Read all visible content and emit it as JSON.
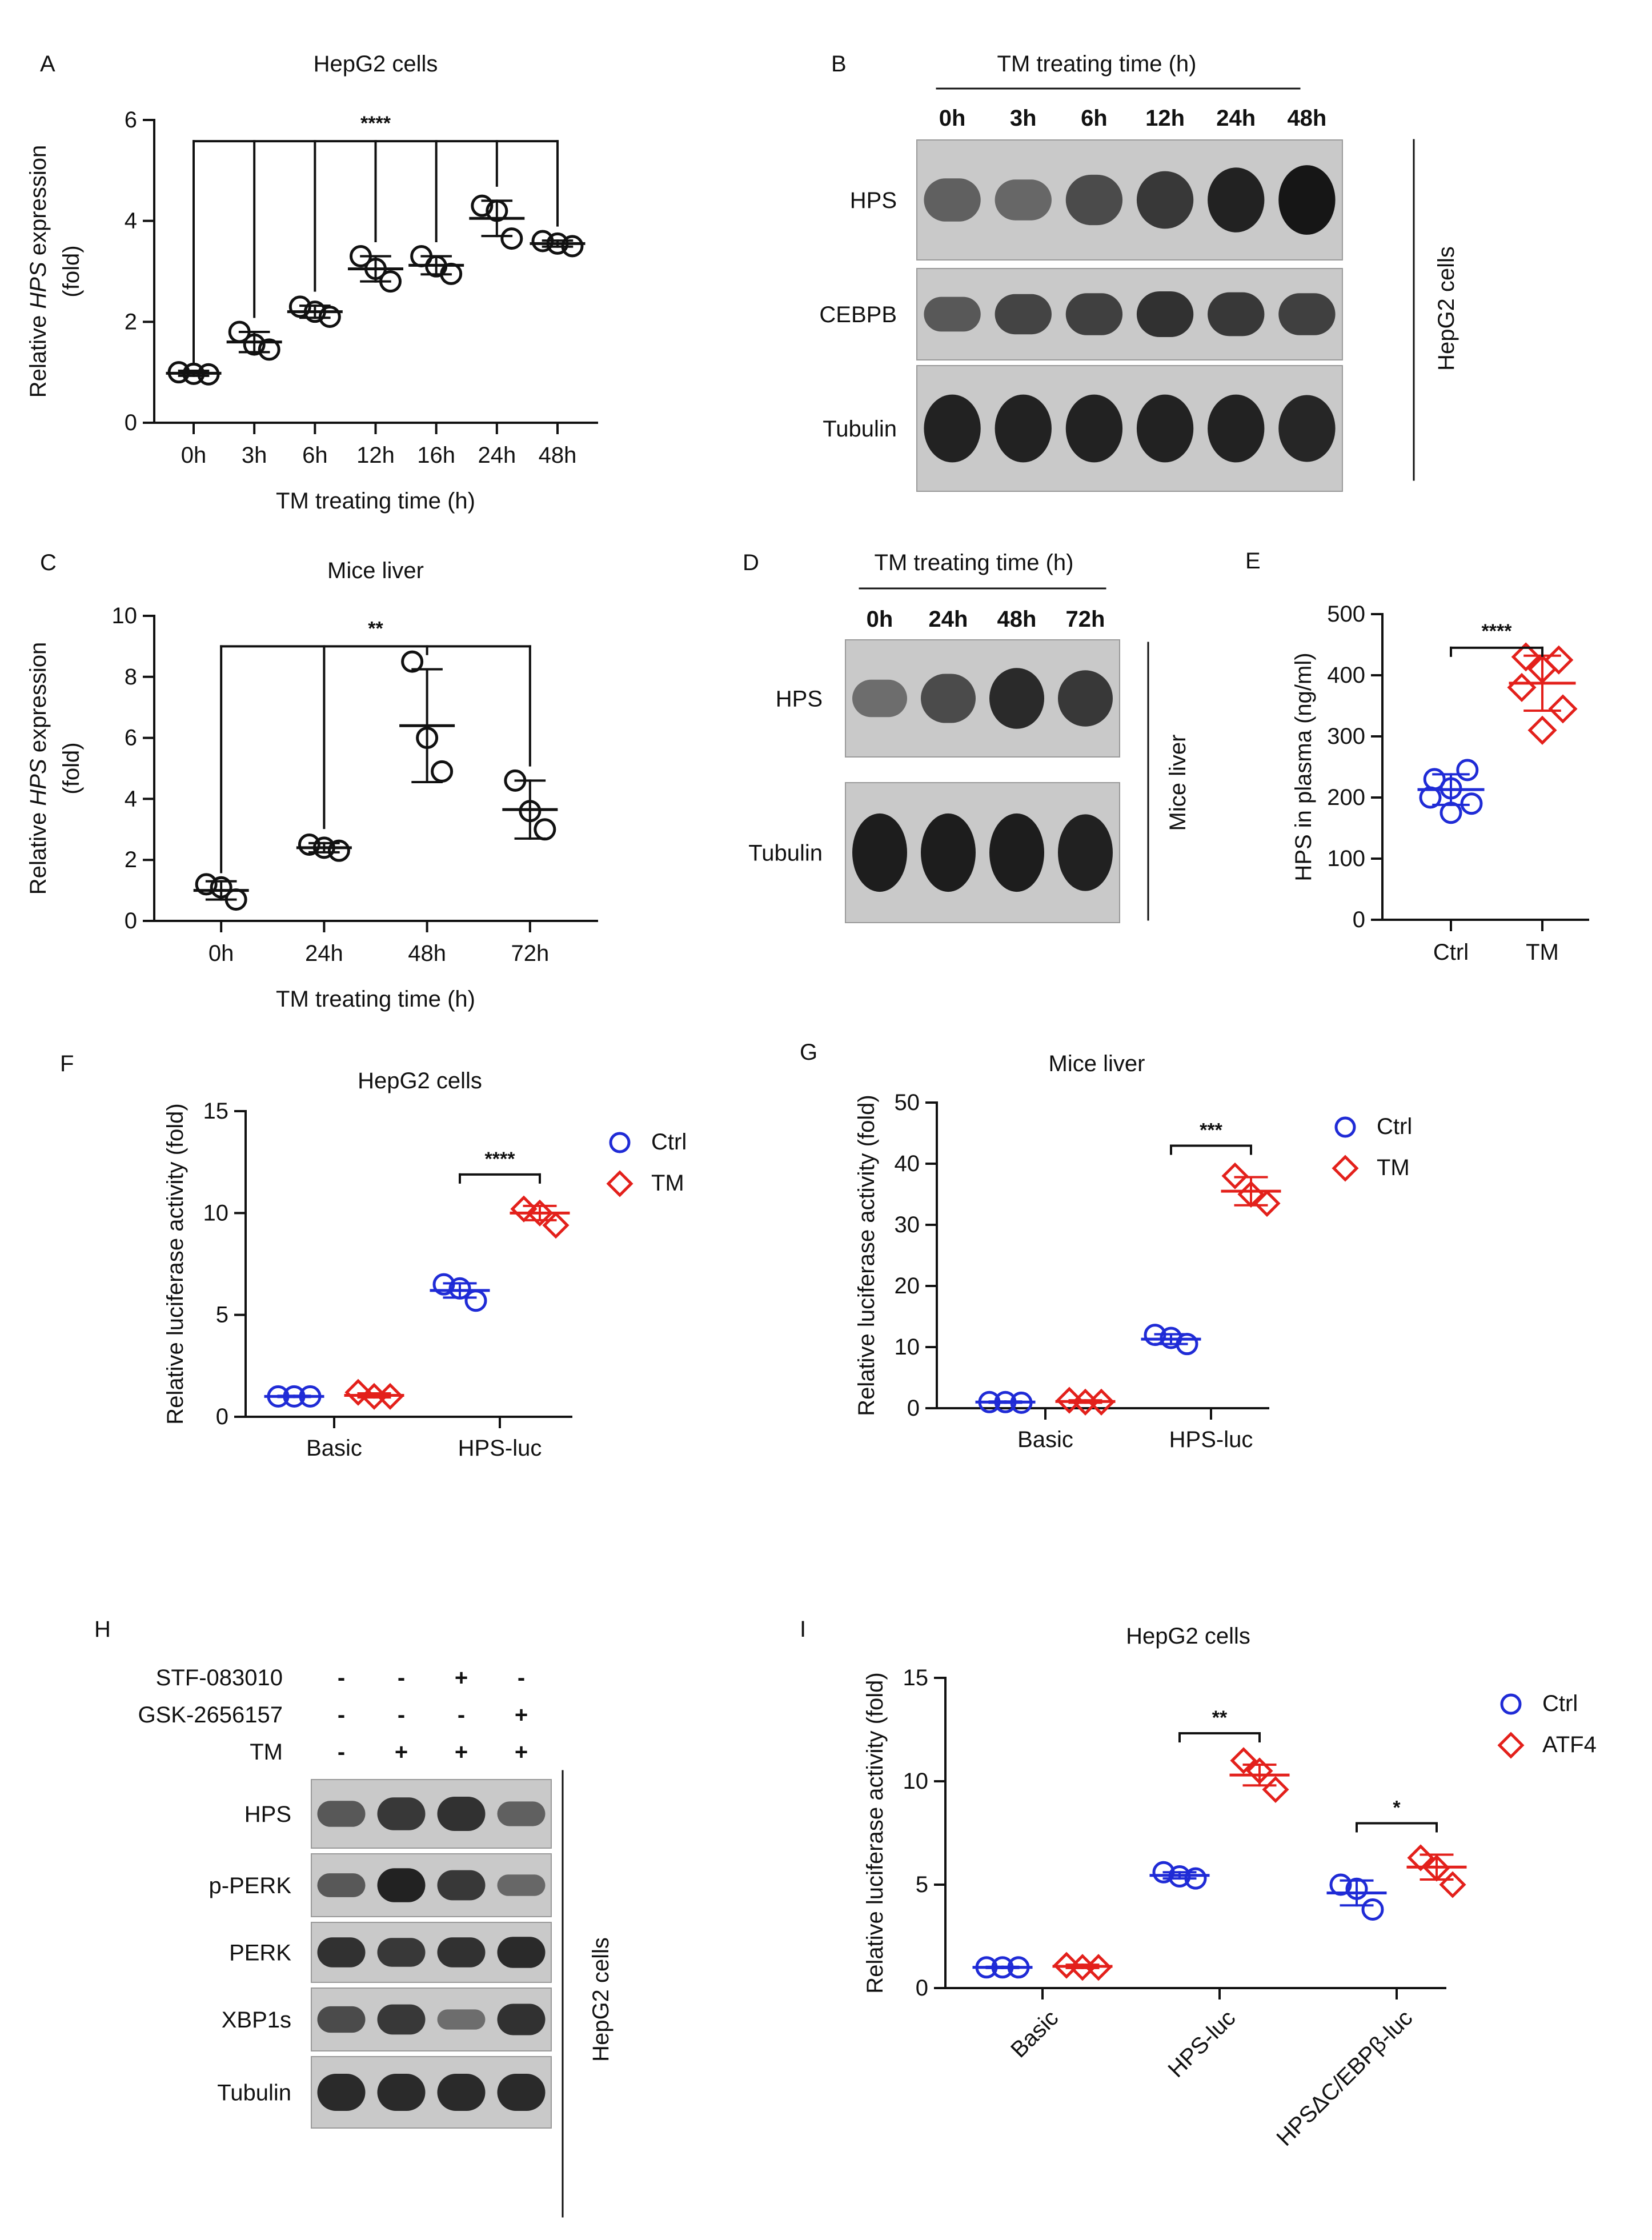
{
  "colors": {
    "ctrl": "#1f2bd6",
    "treated": "#e3201b",
    "axis": "#111111",
    "blot_bg": "#c9c9c9",
    "band": "#161616"
  },
  "chart_data": [
    {
      "id": "A",
      "type": "scatter",
      "panel_label": "A",
      "title": "HepG2 cells",
      "ylabel_pre": "Relative ",
      "ylabel_italic": "HPS",
      "ylabel_post": " expression",
      "ylabel_line2": "(fold)",
      "xlabel": "TM treating time (h)",
      "ylim": [
        0,
        6
      ],
      "yticks": [
        0,
        2,
        4,
        6
      ],
      "categories": [
        "0h",
        "3h",
        "6h",
        "12h",
        "16h",
        "24h",
        "48h"
      ],
      "points": [
        [
          1.0,
          0.97,
          0.96
        ],
        [
          1.8,
          1.55,
          1.45
        ],
        [
          2.3,
          2.2,
          2.1
        ],
        [
          3.3,
          3.05,
          2.8
        ],
        [
          3.3,
          3.1,
          2.95
        ],
        [
          4.3,
          4.2,
          3.65
        ],
        [
          3.6,
          3.55,
          3.5
        ]
      ],
      "mean": [
        0.98,
        1.6,
        2.2,
        3.05,
        3.12,
        4.05,
        3.55
      ],
      "sd": [
        0.05,
        0.2,
        0.12,
        0.25,
        0.18,
        0.35,
        0.06
      ],
      "significance": "****"
    },
    {
      "id": "C",
      "type": "scatter",
      "panel_label": "C",
      "title": "Mice liver",
      "ylabel_pre": "Relative ",
      "ylabel_italic": "HPS",
      "ylabel_post": " expression",
      "ylabel_line2": "(fold)",
      "xlabel": "TM treating time (h)",
      "ylim": [
        0,
        10
      ],
      "yticks": [
        0,
        2,
        4,
        6,
        8,
        10
      ],
      "categories": [
        "0h",
        "24h",
        "48h",
        "72h"
      ],
      "points": [
        [
          1.2,
          1.1,
          0.7
        ],
        [
          2.5,
          2.4,
          2.3
        ],
        [
          8.5,
          6.0,
          4.9
        ],
        [
          4.6,
          3.6,
          3.0
        ]
      ],
      "mean": [
        1.0,
        2.4,
        6.4,
        3.65
      ],
      "sd": [
        0.3,
        0.15,
        1.85,
        0.95
      ],
      "significance": "**"
    },
    {
      "id": "E",
      "type": "scatter",
      "panel_label": "E",
      "title": "",
      "ylabel": "HPS in plasma (ng/ml)",
      "ylim": [
        0,
        500
      ],
      "yticks": [
        0,
        100,
        200,
        300,
        400,
        500
      ],
      "categories": [
        "Ctrl",
        "TM"
      ],
      "points": [
        [
          230,
          245,
          215,
          200,
          190,
          175
        ],
        [
          430,
          425,
          410,
          380,
          345,
          310
        ]
      ],
      "mean": [
        213,
        387
      ],
      "sd": [
        25,
        45
      ],
      "significance": "****"
    },
    {
      "id": "F",
      "type": "scatter",
      "panel_label": "F",
      "title": "HepG2 cells",
      "ylabel": "Relative luciferase activity (fold)",
      "ylim": [
        0,
        15
      ],
      "yticks": [
        0,
        5,
        10,
        15
      ],
      "categories": [
        "Basic",
        "HPS-luc"
      ],
      "series": [
        {
          "name": "Ctrl",
          "points": [
            [
              1.0,
              1.0,
              1.0
            ],
            [
              6.5,
              6.3,
              5.7
            ]
          ],
          "mean": [
            1.0,
            6.2
          ],
          "sd": [
            0.03,
            0.35
          ]
        },
        {
          "name": "TM",
          "points": [
            [
              1.2,
              1.0,
              1.0
            ],
            [
              10.2,
              10.0,
              9.4
            ]
          ],
          "mean": [
            1.05,
            10.0
          ],
          "sd": [
            0.1,
            0.35
          ]
        }
      ],
      "significance": "****"
    },
    {
      "id": "G",
      "type": "scatter",
      "panel_label": "G",
      "title": "Mice liver",
      "ylabel": "Relative luciferase activity (fold)",
      "ylim": [
        0,
        50
      ],
      "yticks": [
        0,
        10,
        20,
        30,
        40,
        50
      ],
      "categories": [
        "Basic",
        "HPS-luc"
      ],
      "series": [
        {
          "name": "Ctrl",
          "points": [
            [
              1.0,
              1.0,
              0.9
            ],
            [
              12.0,
              11.5,
              10.5
            ]
          ],
          "mean": [
            1.0,
            11.3
          ],
          "sd": [
            0.1,
            0.8
          ]
        },
        {
          "name": "TM",
          "points": [
            [
              1.3,
              1.0,
              1.0
            ],
            [
              38.0,
              35.0,
              33.5
            ]
          ],
          "mean": [
            1.1,
            35.5
          ],
          "sd": [
            0.2,
            2.3
          ]
        }
      ],
      "significance": "***"
    },
    {
      "id": "I",
      "type": "scatter",
      "panel_label": "I",
      "title": "HepG2 cells",
      "ylabel": "Relative luciferase activity (fold)",
      "ylim": [
        0,
        15
      ],
      "yticks": [
        0,
        5,
        10,
        15
      ],
      "categories": [
        "Basic",
        "HPS-luc",
        "HPSΔC/EBPβ-luc"
      ],
      "series": [
        {
          "name": "Ctrl",
          "points": [
            [
              1.0,
              1.0,
              1.0
            ],
            [
              5.6,
              5.4,
              5.3
            ],
            [
              5.0,
              4.8,
              3.8
            ]
          ],
          "mean": [
            1.0,
            5.45,
            4.6
          ],
          "sd": [
            0.03,
            0.15,
            0.6
          ]
        },
        {
          "name": "ATF4",
          "points": [
            [
              1.1,
              1.0,
              1.0
            ],
            [
              11.0,
              10.5,
              9.6
            ],
            [
              6.3,
              5.8,
              5.0
            ]
          ],
          "mean": [
            1.05,
            10.3,
            5.85
          ],
          "sd": [
            0.08,
            0.5,
            0.6
          ]
        }
      ],
      "significance": [
        "**",
        "*"
      ]
    }
  ],
  "blots": [
    {
      "id": "B",
      "panel_label": "B",
      "header": "TM treating time (h)",
      "lanes": [
        "0h",
        "3h",
        "6h",
        "12h",
        "24h",
        "48h"
      ],
      "rows": [
        {
          "label": "HPS",
          "intensity": [
            0.45,
            0.4,
            0.6,
            0.75,
            0.9,
            1.0
          ]
        },
        {
          "label": "CEBPB",
          "intensity": [
            0.5,
            0.65,
            0.7,
            0.8,
            0.75,
            0.7
          ]
        },
        {
          "label": "Tubulin",
          "intensity": [
            0.9,
            0.9,
            0.9,
            0.9,
            0.9,
            0.88
          ]
        }
      ],
      "side_label": "HepG2 cells"
    },
    {
      "id": "D",
      "panel_label": "D",
      "header": "TM treating time (h)",
      "lanes": [
        "0h",
        "24h",
        "48h",
        "72h"
      ],
      "rows": [
        {
          "label": "HPS",
          "intensity": [
            0.35,
            0.6,
            0.85,
            0.75
          ]
        },
        {
          "label": "Tubulin",
          "intensity": [
            0.95,
            0.95,
            0.95,
            0.92
          ]
        }
      ],
      "side_label": "Mice liver"
    },
    {
      "id": "H",
      "panel_label": "H",
      "treatments": [
        {
          "label": "STF-083010",
          "values": [
            "-",
            "-",
            "+",
            "-"
          ]
        },
        {
          "label": "GSK-2656157",
          "values": [
            "-",
            "-",
            "-",
            "+"
          ]
        },
        {
          "label": "TM",
          "values": [
            "-",
            "+",
            "+",
            "+"
          ]
        }
      ],
      "rows": [
        {
          "label": "HPS",
          "intensity": [
            0.5,
            0.75,
            0.8,
            0.45
          ]
        },
        {
          "label": "p-PERK",
          "intensity": [
            0.5,
            0.9,
            0.75,
            0.4
          ]
        },
        {
          "label": "PERK",
          "intensity": [
            0.8,
            0.75,
            0.8,
            0.85
          ]
        },
        {
          "label": "XBP1s",
          "intensity": [
            0.6,
            0.75,
            0.35,
            0.8
          ]
        },
        {
          "label": "Tubulin",
          "intensity": [
            0.85,
            0.85,
            0.85,
            0.85
          ]
        }
      ],
      "side_label": "HepG2 cells"
    }
  ]
}
